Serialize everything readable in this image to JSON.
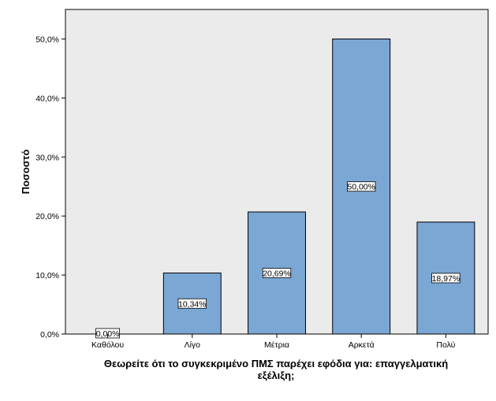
{
  "chart_data": {
    "type": "bar",
    "categories": [
      "Καθόλου",
      "Λίγο",
      "Μέτρια",
      "Αρκετά",
      "Πολύ"
    ],
    "values": [
      0.0,
      10.34,
      20.69,
      50.0,
      18.97
    ],
    "data_labels": [
      "0,00%",
      "10,34%",
      "20,69%",
      "50,00%",
      "18,97%"
    ],
    "xlabel_lines": [
      "Θεωρείτε ότι το συγκεκριμένο ΠΜΣ παρέχει εφόδια για: επαγγελματική",
      "εξέλιξη;"
    ],
    "ylabel": "Ποσοστό",
    "ylim": [
      0,
      55
    ],
    "yticks": [
      0,
      10,
      20,
      30,
      40,
      50
    ],
    "ytick_labels": [
      "0,0%",
      "10,0%",
      "20,0%",
      "30,0%",
      "40,0%",
      "50,0%"
    ],
    "grid": false,
    "colors": {
      "bar_fill": "#7BA7D5",
      "bar_stroke": "#000000",
      "plot_background": "#EBEBEB",
      "label_background": "#FFFFFF"
    }
  }
}
